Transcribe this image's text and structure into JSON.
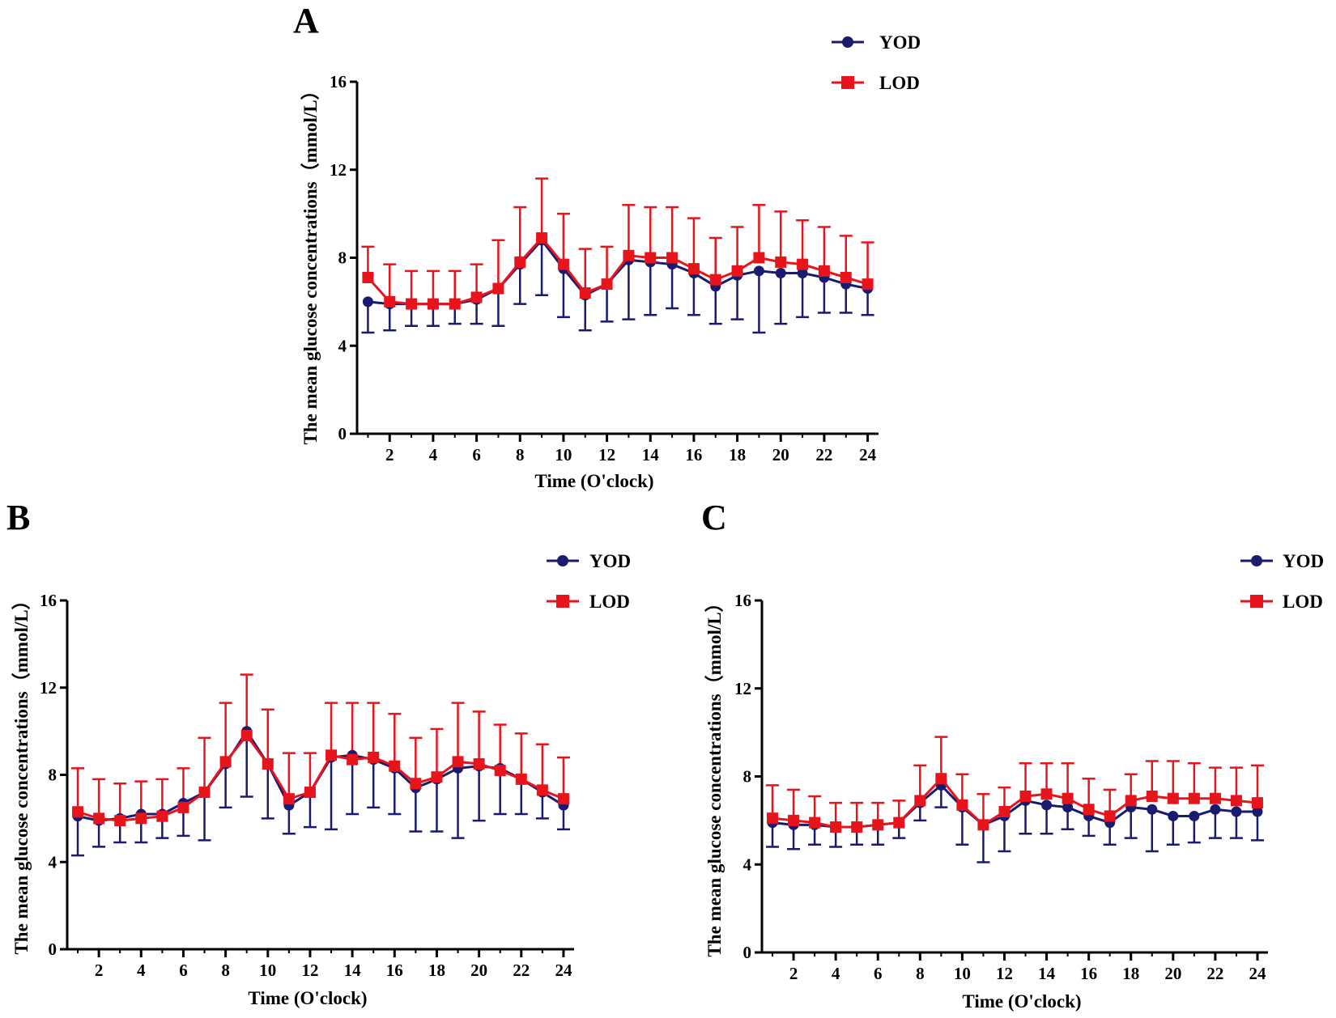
{
  "colors": {
    "yod": "#1a1a6e",
    "lod": "#e8141c",
    "axis": "#000000"
  },
  "chart_data": [
    {
      "type": "line",
      "panel": "A",
      "xlabel": "Time (O'clock)",
      "ylabel": "The mean glucose concentrations（mmol/L）",
      "xlim": [
        0.5,
        24.5
      ],
      "ylim": [
        0,
        16
      ],
      "xticks": [
        "2",
        "4",
        "6",
        "8",
        "10",
        "12",
        "14",
        "16",
        "18",
        "20",
        "22",
        "24"
      ],
      "yticks": [
        "0",
        "4",
        "8",
        "12",
        "16"
      ],
      "legend": [
        "YOD",
        "LOD"
      ],
      "x": [
        1,
        2,
        3,
        4,
        5,
        6,
        7,
        8,
        9,
        10,
        11,
        12,
        13,
        14,
        15,
        16,
        17,
        18,
        19,
        20,
        21,
        22,
        23,
        24
      ],
      "series": [
        {
          "name": "YOD",
          "values": [
            6.0,
            5.9,
            5.9,
            5.9,
            5.9,
            6.1,
            6.6,
            7.7,
            8.8,
            7.5,
            6.3,
            6.8,
            7.9,
            7.8,
            7.7,
            7.3,
            6.7,
            7.2,
            7.4,
            7.3,
            7.3,
            7.1,
            6.8,
            6.6
          ],
          "err_low": [
            4.6,
            4.7,
            4.9,
            4.9,
            5.0,
            5.0,
            4.9,
            5.9,
            6.3,
            5.3,
            4.7,
            5.1,
            5.2,
            5.4,
            5.7,
            5.4,
            5.0,
            5.2,
            4.6,
            5.0,
            5.3,
            5.5,
            5.5,
            5.4
          ]
        },
        {
          "name": "LOD",
          "values": [
            7.1,
            6.0,
            5.9,
            5.9,
            5.9,
            6.2,
            6.6,
            7.8,
            8.9,
            7.7,
            6.4,
            6.8,
            8.1,
            8.0,
            8.0,
            7.5,
            7.0,
            7.4,
            8.0,
            7.8,
            7.7,
            7.4,
            7.1,
            6.8
          ],
          "err_high": [
            8.5,
            7.7,
            7.4,
            7.4,
            7.4,
            7.7,
            8.8,
            10.3,
            11.6,
            10.0,
            8.4,
            8.5,
            10.4,
            10.3,
            10.3,
            9.8,
            8.9,
            9.4,
            10.4,
            10.1,
            9.7,
            9.4,
            9.0,
            8.7
          ]
        }
      ]
    },
    {
      "type": "line",
      "panel": "B",
      "xlabel": "Time (O'clock)",
      "ylabel": "The mean glucose concentrations（mmol/L）",
      "xlim": [
        0.5,
        24.5
      ],
      "ylim": [
        0,
        16
      ],
      "xticks": [
        "2",
        "4",
        "6",
        "8",
        "10",
        "12",
        "14",
        "16",
        "18",
        "20",
        "22",
        "24"
      ],
      "yticks": [
        "0",
        "4",
        "8",
        "12",
        "16"
      ],
      "legend": [
        "YOD",
        "LOD"
      ],
      "x": [
        1,
        2,
        3,
        4,
        5,
        6,
        7,
        8,
        9,
        10,
        11,
        12,
        13,
        14,
        15,
        16,
        17,
        18,
        19,
        20,
        21,
        22,
        23,
        24
      ],
      "series": [
        {
          "name": "YOD",
          "values": [
            6.1,
            5.9,
            6.0,
            6.2,
            6.2,
            6.7,
            7.2,
            8.5,
            10.0,
            8.5,
            6.6,
            7.2,
            8.8,
            8.9,
            8.7,
            8.3,
            7.4,
            7.8,
            8.3,
            8.4,
            8.3,
            7.8,
            7.2,
            6.6
          ],
          "err_low": [
            4.3,
            4.7,
            4.9,
            4.9,
            5.1,
            5.2,
            5.0,
            6.5,
            7.0,
            6.0,
            5.3,
            5.6,
            5.5,
            6.2,
            6.5,
            6.2,
            5.4,
            5.4,
            5.1,
            5.9,
            6.2,
            6.2,
            6.0,
            5.5
          ]
        },
        {
          "name": "LOD",
          "values": [
            6.3,
            6.0,
            5.9,
            6.0,
            6.1,
            6.5,
            7.2,
            8.6,
            9.8,
            8.5,
            6.9,
            7.2,
            8.9,
            8.7,
            8.8,
            8.4,
            7.6,
            7.9,
            8.6,
            8.5,
            8.2,
            7.8,
            7.3,
            6.9
          ],
          "err_high": [
            8.3,
            7.8,
            7.6,
            7.7,
            7.8,
            8.3,
            9.7,
            11.3,
            12.6,
            11.0,
            9.0,
            9.0,
            11.3,
            11.3,
            11.3,
            10.8,
            9.7,
            10.1,
            11.3,
            10.9,
            10.3,
            9.9,
            9.4,
            8.8
          ]
        }
      ]
    },
    {
      "type": "line",
      "panel": "C",
      "xlabel": "Time (O'clock)",
      "ylabel": "The mean glucose concentrations（mmol/L）",
      "xlim": [
        0.5,
        24.5
      ],
      "ylim": [
        0,
        16
      ],
      "xticks": [
        "2",
        "4",
        "6",
        "8",
        "10",
        "12",
        "14",
        "16",
        "18",
        "20",
        "22",
        "24"
      ],
      "yticks": [
        "0",
        "4",
        "8",
        "12",
        "16"
      ],
      "legend": [
        "YOD",
        "LOD"
      ],
      "x": [
        1,
        2,
        3,
        4,
        5,
        6,
        7,
        8,
        9,
        10,
        11,
        12,
        13,
        14,
        15,
        16,
        17,
        18,
        19,
        20,
        21,
        22,
        23,
        24
      ],
      "series": [
        {
          "name": "YOD",
          "values": [
            5.9,
            5.8,
            5.8,
            5.7,
            5.7,
            5.8,
            5.9,
            6.8,
            7.6,
            6.6,
            5.8,
            6.2,
            6.9,
            6.7,
            6.6,
            6.2,
            5.9,
            6.6,
            6.5,
            6.2,
            6.2,
            6.5,
            6.4,
            6.4
          ],
          "err_low": [
            4.8,
            4.7,
            4.9,
            4.8,
            4.9,
            4.9,
            5.2,
            6.0,
            6.6,
            4.9,
            4.1,
            4.6,
            5.4,
            5.4,
            5.6,
            5.3,
            4.9,
            5.2,
            4.6,
            4.9,
            5.0,
            5.2,
            5.2,
            5.1
          ]
        },
        {
          "name": "LOD",
          "values": [
            6.1,
            6.0,
            5.9,
            5.7,
            5.7,
            5.8,
            5.9,
            6.9,
            7.9,
            6.7,
            5.8,
            6.4,
            7.1,
            7.2,
            7.0,
            6.5,
            6.2,
            6.9,
            7.1,
            7.0,
            7.0,
            7.0,
            6.9,
            6.8
          ],
          "err_high": [
            7.6,
            7.4,
            7.1,
            6.8,
            6.8,
            6.8,
            6.9,
            8.5,
            9.8,
            8.1,
            7.2,
            7.5,
            8.6,
            8.6,
            8.6,
            7.9,
            7.4,
            8.1,
            8.7,
            8.7,
            8.6,
            8.4,
            8.4,
            8.5
          ]
        }
      ]
    }
  ]
}
